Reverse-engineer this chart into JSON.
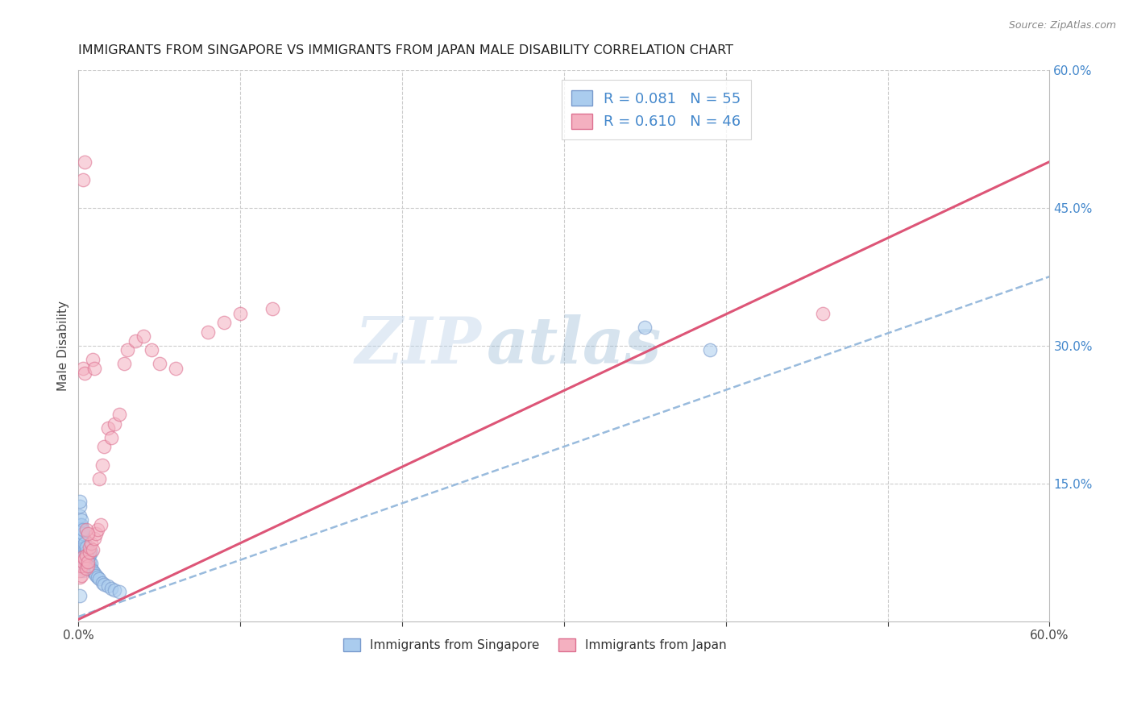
{
  "title": "IMMIGRANTS FROM SINGAPORE VS IMMIGRANTS FROM JAPAN MALE DISABILITY CORRELATION CHART",
  "source": "Source: ZipAtlas.com",
  "ylabel": "Male Disability",
  "xlim": [
    0.0,
    0.6
  ],
  "ylim": [
    0.0,
    0.6
  ],
  "grid_color": "#cccccc",
  "background_color": "#ffffff",
  "singapore_color": "#aaccee",
  "japan_color": "#f4b0c0",
  "singapore_edge": "#7799cc",
  "japan_edge": "#dd7090",
  "trend_singapore_color": "#99bbdd",
  "trend_japan_color": "#dd5577",
  "R_singapore": 0.081,
  "N_singapore": 55,
  "R_japan": 0.61,
  "N_japan": 46,
  "legend_label_singapore": "Immigrants from Singapore",
  "legend_label_japan": "Immigrants from Japan",
  "watermark_zip": "ZIP",
  "watermark_atlas": "atlas",
  "sg_trend_x0": 0.0,
  "sg_trend_y0": 0.005,
  "sg_trend_x1": 0.6,
  "sg_trend_y1": 0.375,
  "jp_trend_x0": 0.0,
  "jp_trend_y0": 0.002,
  "jp_trend_x1": 0.6,
  "jp_trend_y1": 0.5,
  "singapore_x": [
    0.001,
    0.001,
    0.001,
    0.001,
    0.001,
    0.002,
    0.002,
    0.002,
    0.002,
    0.002,
    0.003,
    0.003,
    0.003,
    0.003,
    0.003,
    0.003,
    0.003,
    0.004,
    0.004,
    0.004,
    0.004,
    0.005,
    0.005,
    0.005,
    0.005,
    0.006,
    0.006,
    0.006,
    0.007,
    0.007,
    0.008,
    0.008,
    0.009,
    0.01,
    0.011,
    0.012,
    0.013,
    0.015,
    0.016,
    0.018,
    0.02,
    0.022,
    0.025,
    0.002,
    0.002,
    0.003,
    0.003,
    0.004,
    0.005,
    0.006,
    0.007,
    0.008,
    0.35,
    0.39,
    0.001
  ],
  "singapore_y": [
    0.095,
    0.105,
    0.115,
    0.125,
    0.13,
    0.09,
    0.095,
    0.1,
    0.105,
    0.11,
    0.075,
    0.08,
    0.085,
    0.09,
    0.092,
    0.095,
    0.1,
    0.07,
    0.075,
    0.08,
    0.085,
    0.065,
    0.07,
    0.075,
    0.08,
    0.062,
    0.068,
    0.072,
    0.06,
    0.065,
    0.058,
    0.063,
    0.055,
    0.052,
    0.05,
    0.048,
    0.046,
    0.042,
    0.04,
    0.038,
    0.036,
    0.034,
    0.032,
    0.06,
    0.065,
    0.055,
    0.058,
    0.062,
    0.068,
    0.07,
    0.072,
    0.075,
    0.32,
    0.295,
    0.028
  ],
  "japan_x": [
    0.001,
    0.001,
    0.002,
    0.002,
    0.003,
    0.003,
    0.003,
    0.004,
    0.004,
    0.005,
    0.005,
    0.006,
    0.006,
    0.007,
    0.007,
    0.008,
    0.009,
    0.01,
    0.011,
    0.012,
    0.013,
    0.014,
    0.015,
    0.016,
    0.018,
    0.02,
    0.022,
    0.025,
    0.028,
    0.03,
    0.035,
    0.04,
    0.045,
    0.05,
    0.06,
    0.08,
    0.09,
    0.1,
    0.12,
    0.003,
    0.004,
    0.46,
    0.009,
    0.01,
    0.005,
    0.006
  ],
  "japan_y": [
    0.048,
    0.055,
    0.05,
    0.06,
    0.065,
    0.07,
    0.48,
    0.068,
    0.5,
    0.058,
    0.072,
    0.06,
    0.065,
    0.075,
    0.08,
    0.085,
    0.078,
    0.09,
    0.095,
    0.1,
    0.155,
    0.105,
    0.17,
    0.19,
    0.21,
    0.2,
    0.215,
    0.225,
    0.28,
    0.295,
    0.305,
    0.31,
    0.295,
    0.28,
    0.275,
    0.315,
    0.325,
    0.335,
    0.34,
    0.275,
    0.27,
    0.335,
    0.285,
    0.275,
    0.1,
    0.095
  ]
}
